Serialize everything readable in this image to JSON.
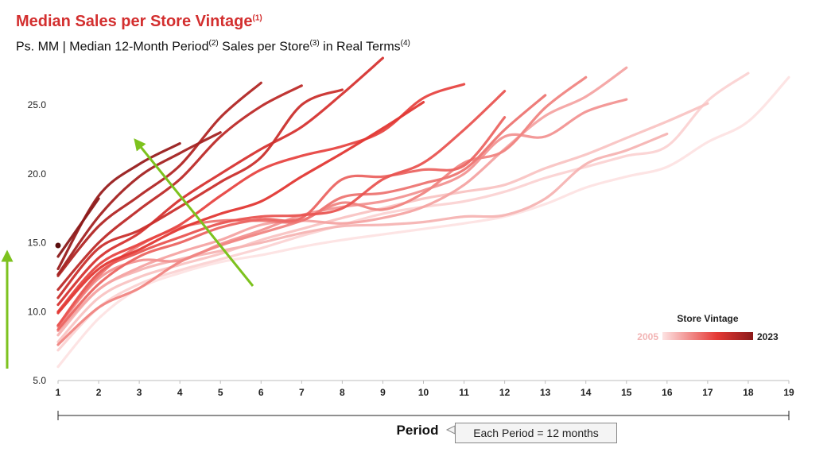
{
  "header": {
    "title": "Median Sales per Store Vintage",
    "title_sup": "(1)",
    "subtitle_parts": [
      {
        "text": "Ps. MM | Median 12-Month Period",
        "sup": "(2)"
      },
      {
        "text": " Sales per Store",
        "sup": "(3)"
      },
      {
        "text": " in Real Terms",
        "sup": "(4)"
      }
    ]
  },
  "footer": {
    "note": "Each Period = 12 months"
  },
  "colors": {
    "title": "#d32f2f",
    "arrow": "#7dc21e",
    "gradient_start": "#fde3e3",
    "gradient_end": "#8b1a1a"
  },
  "chart_data": {
    "type": "line",
    "xlabel": "Period",
    "ylabel": "",
    "xlim": [
      1,
      19
    ],
    "ylim": [
      5,
      28
    ],
    "x_ticks": [
      1,
      2,
      3,
      4,
      5,
      6,
      7,
      8,
      9,
      10,
      11,
      12,
      13,
      14,
      15,
      16,
      17,
      18,
      19
    ],
    "y_ticks": [
      5.0,
      10.0,
      15.0,
      20.0,
      25.0
    ],
    "y_tick_labels": [
      "5.0",
      "10.0",
      "15.0",
      "20.0",
      "25.0"
    ],
    "grid": false,
    "legend": {
      "title": "Store Vintage",
      "min_label": "2005",
      "max_label": "2023",
      "placement": "right"
    },
    "series": [
      {
        "vintage": 2005,
        "values": [
          6.0,
          9.5,
          11.7,
          12.8,
          13.6,
          14.1,
          14.7,
          15.2,
          15.6,
          16.0,
          16.4,
          16.9,
          17.8,
          19.0,
          19.8,
          20.5,
          22.3,
          23.8,
          27.0
        ]
      },
      {
        "vintage": 2006,
        "values": [
          7.2,
          10.3,
          12.0,
          13.0,
          13.8,
          14.6,
          15.5,
          16.3,
          17.1,
          17.6,
          18.0,
          18.7,
          19.7,
          20.5,
          21.3,
          22.0,
          25.3,
          27.3
        ]
      },
      {
        "vintage": 2007,
        "values": [
          7.8,
          11.0,
          12.5,
          13.4,
          14.2,
          15.2,
          16.0,
          16.8,
          17.5,
          18.2,
          18.7,
          19.2,
          20.4,
          21.4,
          22.6,
          23.8,
          25.1
        ]
      },
      {
        "vintage": 2008,
        "values": [
          8.3,
          11.6,
          13.0,
          13.8,
          14.4,
          15.0,
          15.7,
          16.2,
          16.3,
          16.5,
          16.9,
          17.0,
          18.2,
          20.7,
          21.7,
          22.9
        ]
      },
      {
        "vintage": 2009,
        "values": [
          8.6,
          11.6,
          13.2,
          14.3,
          15.2,
          16.3,
          16.6,
          16.4,
          16.8,
          17.6,
          19.2,
          21.8,
          24.2,
          25.6,
          27.7
        ]
      },
      {
        "vintage": 2010,
        "values": [
          8.9,
          12.4,
          13.7,
          13.7,
          14.9,
          15.9,
          17.0,
          17.6,
          18.0,
          18.8,
          20.0,
          22.7,
          22.7,
          24.5,
          25.4
        ]
      },
      {
        "vintage": 2011,
        "values": [
          7.6,
          10.3,
          11.7,
          13.6,
          14.8,
          15.7,
          16.6,
          17.9,
          17.4,
          18.6,
          20.8,
          21.7,
          24.8,
          27.0
        ]
      },
      {
        "vintage": 2012,
        "values": [
          9.0,
          12.6,
          14.8,
          16.1,
          16.6,
          16.6,
          16.6,
          18.3,
          18.6,
          19.3,
          20.3,
          23.2,
          25.7
        ]
      },
      {
        "vintage": 2013,
        "values": [
          8.7,
          12.0,
          14.0,
          15.0,
          16.1,
          16.7,
          16.8,
          19.6,
          19.8,
          20.3,
          20.6,
          24.1
        ]
      },
      {
        "vintage": 2014,
        "values": [
          9.0,
          12.8,
          14.3,
          15.4,
          16.4,
          16.9,
          17.0,
          17.5,
          19.6,
          20.8,
          23.2,
          26.0
        ]
      },
      {
        "vintage": 2015,
        "values": [
          10.0,
          13.4,
          14.9,
          16.3,
          18.4,
          20.3,
          21.3,
          22.0,
          23.1,
          25.5,
          26.5
        ]
      },
      {
        "vintage": 2016,
        "values": [
          9.9,
          13.1,
          14.5,
          16.0,
          17.1,
          18.0,
          19.8,
          21.5,
          23.3,
          25.2
        ]
      },
      {
        "vintage": 2017,
        "values": [
          10.5,
          13.9,
          15.7,
          18.1,
          20.0,
          21.8,
          23.4,
          25.8,
          28.4
        ]
      },
      {
        "vintage": 2018,
        "values": [
          11.0,
          14.6,
          15.9,
          17.6,
          19.4,
          21.2,
          25.0,
          26.1
        ]
      },
      {
        "vintage": 2019,
        "values": [
          11.6,
          15.0,
          17.4,
          19.6,
          22.7,
          24.9,
          26.4
        ]
      },
      {
        "vintage": 2020,
        "values": [
          12.6,
          16.2,
          18.4,
          20.6,
          24.1,
          26.6
        ]
      },
      {
        "vintage": 2021,
        "values": [
          12.7,
          16.9,
          19.8,
          21.5,
          23.0
        ]
      },
      {
        "vintage": 2022,
        "values": [
          13.1,
          18.4,
          20.7,
          22.2
        ]
      },
      {
        "vintage": 2023,
        "values": [
          14.0,
          18.2
        ]
      }
    ],
    "start_marker": {
      "x": 1,
      "y": 14.8
    }
  }
}
